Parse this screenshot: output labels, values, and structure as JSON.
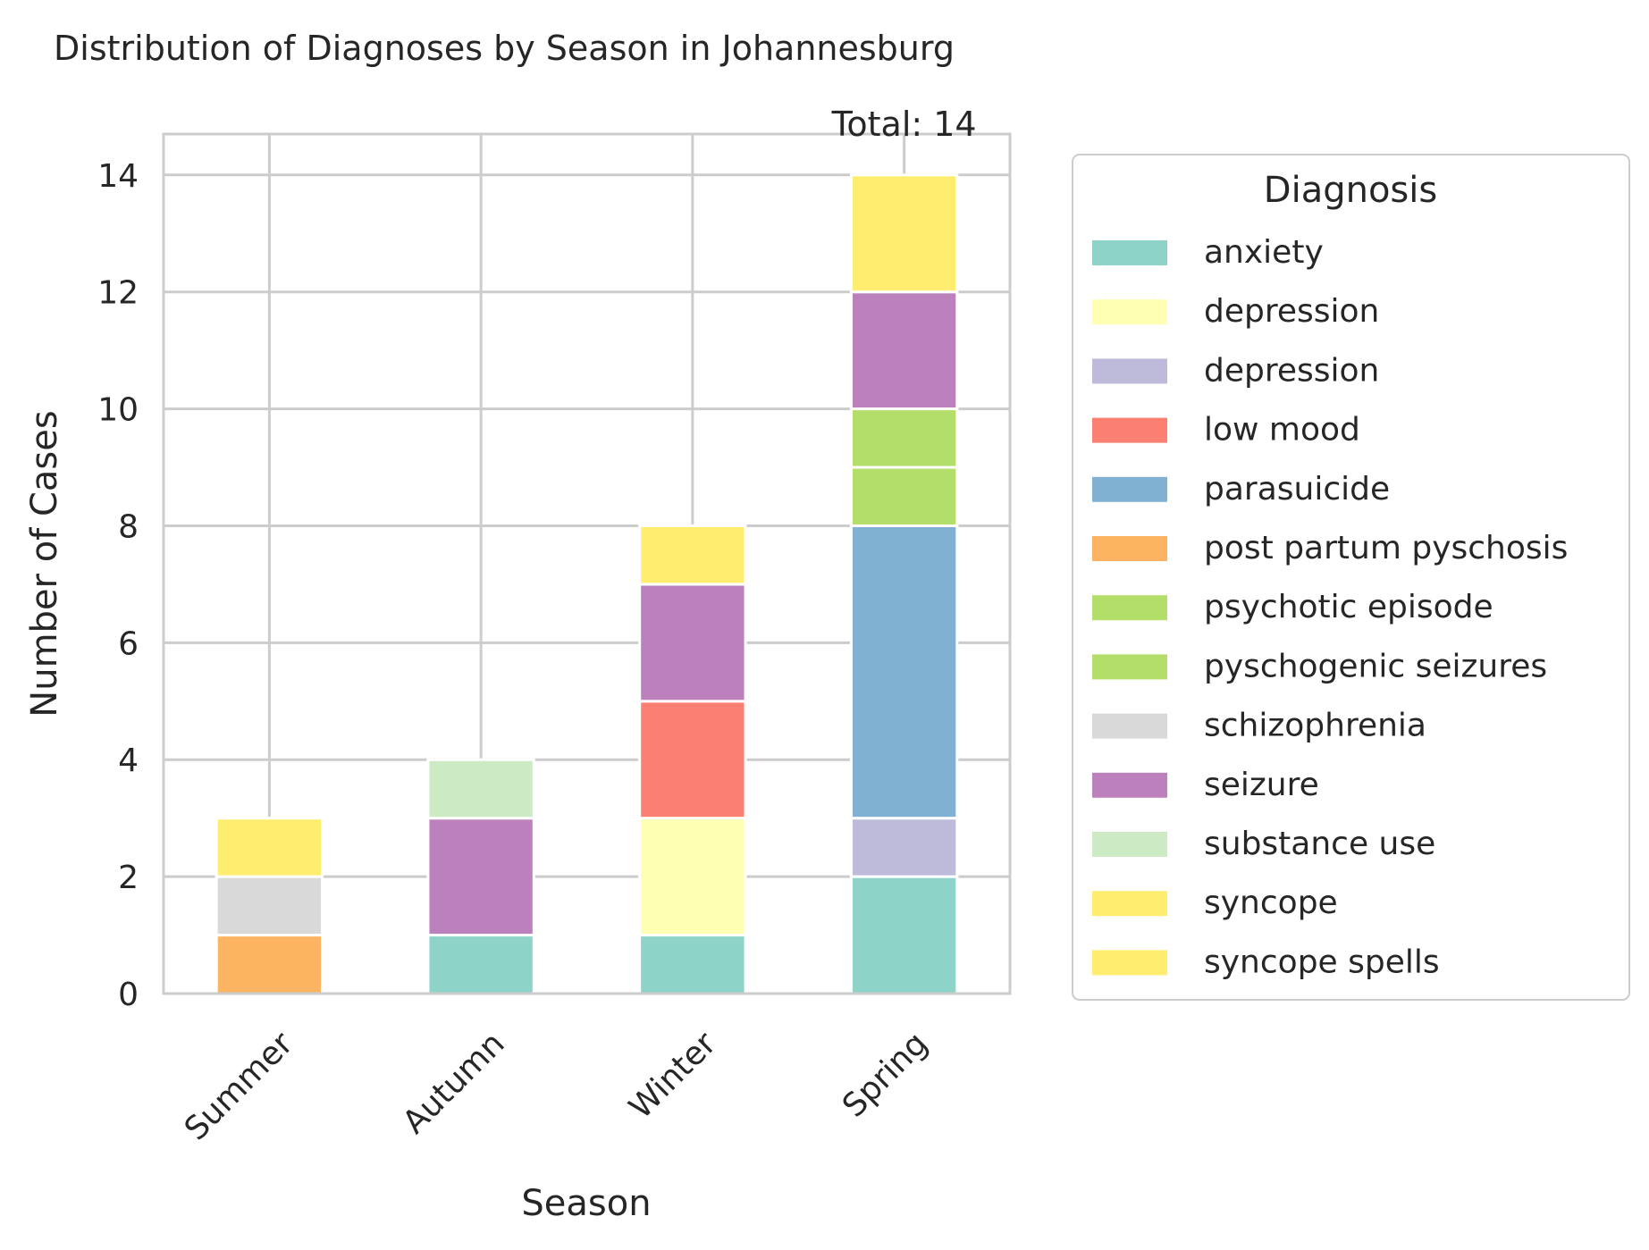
{
  "chart_data": {
    "type": "bar",
    "stacked": true,
    "title": "Distribution of Diagnoses by Season in Johannesburg",
    "xlabel": "Season",
    "ylabel": "Number of Cases",
    "categories": [
      "Summer",
      "Autumn",
      "Winter",
      "Spring"
    ],
    "ylim": [
      0,
      14.7
    ],
    "yticks": [
      0,
      2,
      4,
      6,
      8,
      10,
      12,
      14
    ],
    "grid": true,
    "legend": {
      "title": "Diagnosis",
      "placement": "right, outside plot"
    },
    "annotation": "Total: 14",
    "series": [
      {
        "name": "anxiety",
        "color": "#8dd3c7",
        "values": [
          0,
          1,
          1,
          2
        ]
      },
      {
        "name": "depression",
        "color": "#ffffb3",
        "values": [
          0,
          0,
          2,
          0
        ]
      },
      {
        "name": "depression",
        "color": "#bebada",
        "values": [
          0,
          0,
          0,
          1
        ]
      },
      {
        "name": "low mood",
        "color": "#fb8072",
        "values": [
          0,
          0,
          2,
          0
        ]
      },
      {
        "name": "parasuicide",
        "color": "#80b1d3",
        "values": [
          0,
          0,
          0,
          5
        ]
      },
      {
        "name": "post partum pyschosis",
        "color": "#fdb462",
        "values": [
          1,
          0,
          0,
          0
        ]
      },
      {
        "name": "psychotic episode",
        "color": "#b3de69",
        "values": [
          0,
          0,
          0,
          1
        ]
      },
      {
        "name": "pyschogenic seizures",
        "color": "#b3de69",
        "values": [
          0,
          0,
          0,
          1
        ]
      },
      {
        "name": "schizophrenia",
        "color": "#d9d9d9",
        "values": [
          1,
          0,
          0,
          0
        ]
      },
      {
        "name": "seizure",
        "color": "#bc80bd",
        "values": [
          0,
          2,
          2,
          2
        ]
      },
      {
        "name": "substance use",
        "color": "#ccebc5",
        "values": [
          0,
          1,
          0,
          0
        ]
      },
      {
        "name": "syncope",
        "color": "#ffed6f",
        "values": [
          1,
          0,
          1,
          2
        ]
      },
      {
        "name": "syncope spells",
        "color": "#ffed6f",
        "values": [
          0,
          0,
          0,
          0
        ]
      }
    ]
  }
}
